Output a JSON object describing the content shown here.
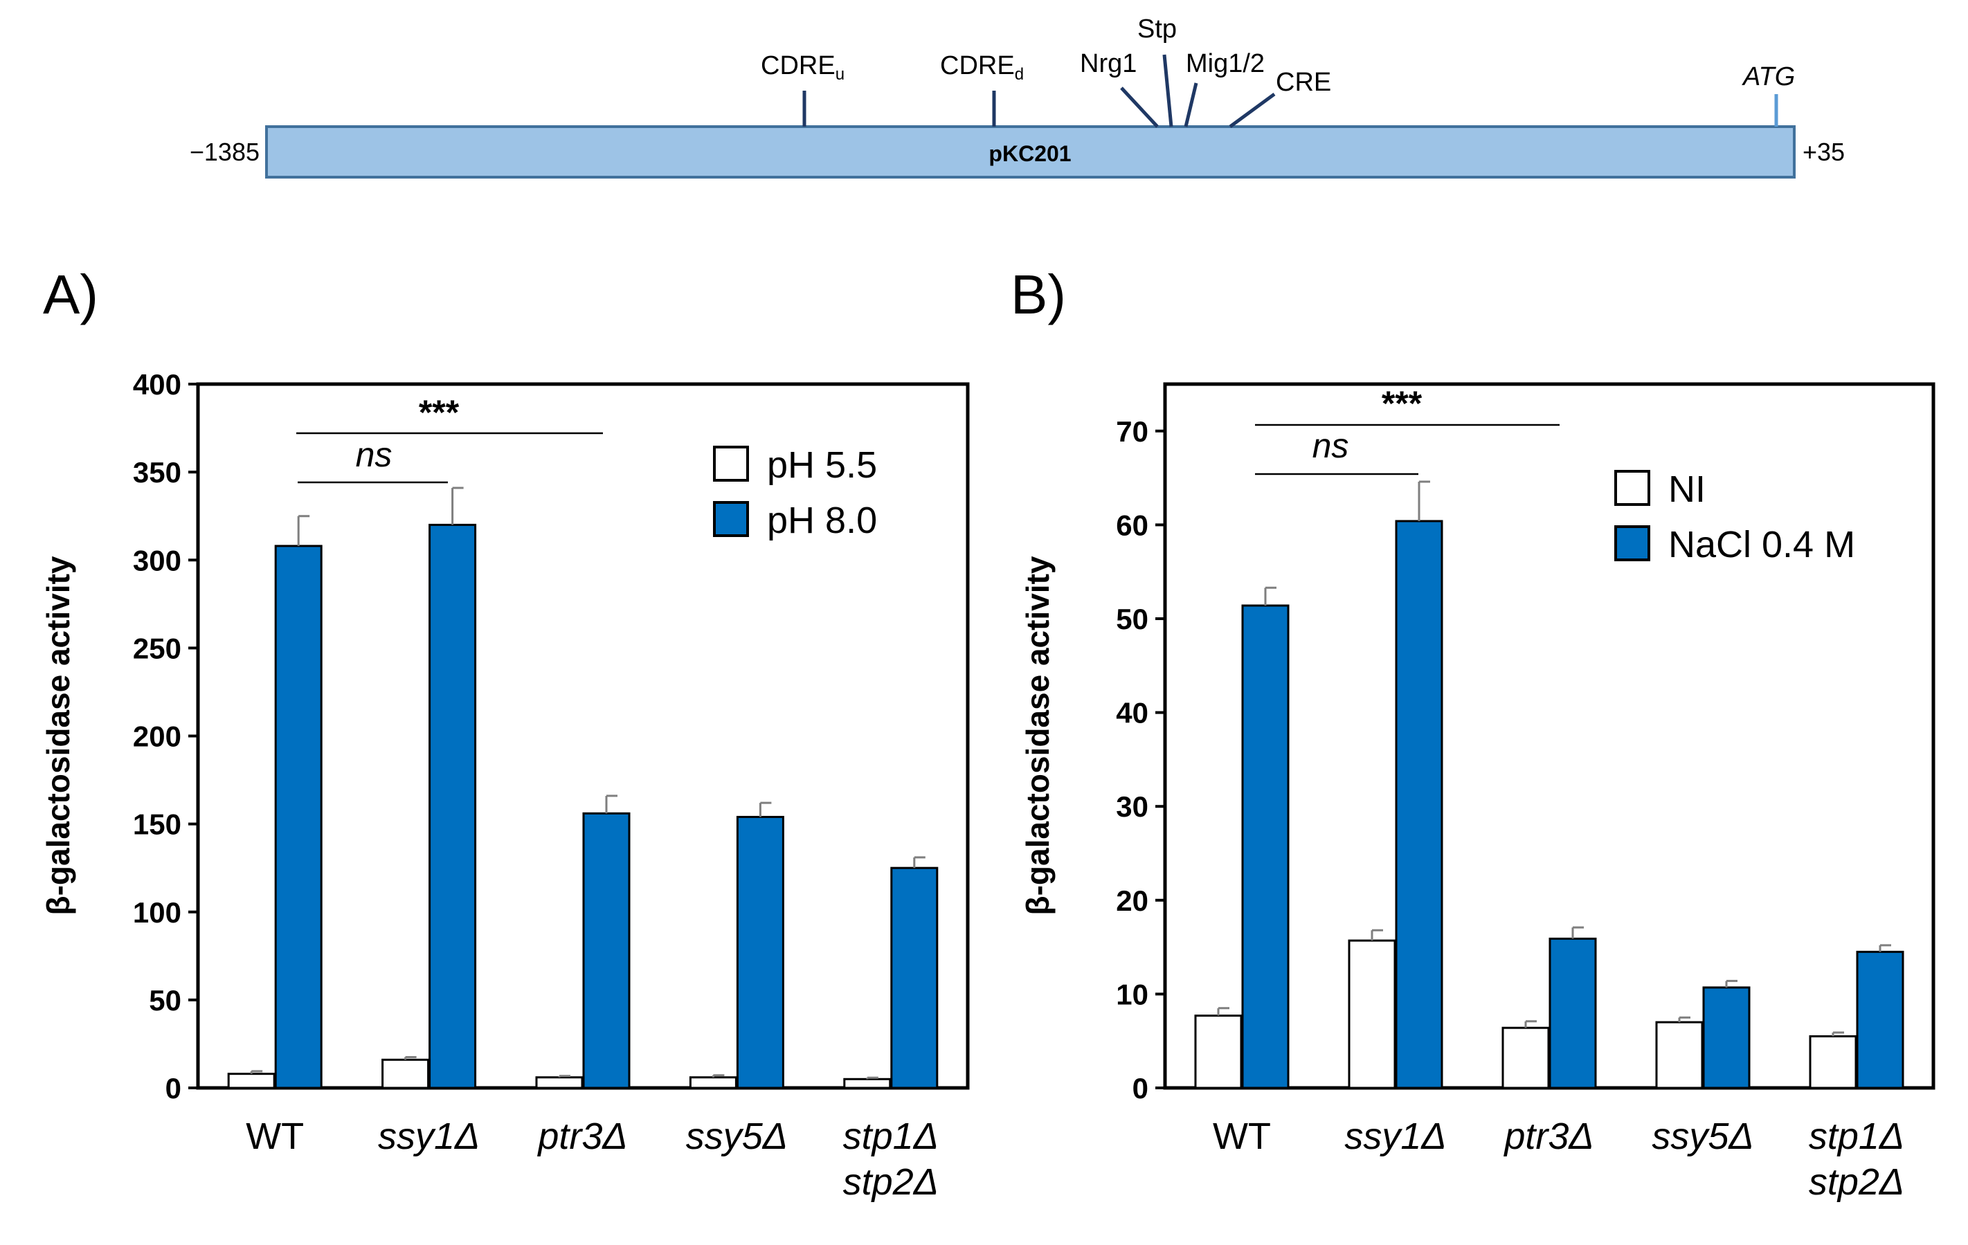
{
  "diagram": {
    "construct_label": "pKC201",
    "left_coord": "−1385",
    "right_coord": "+35",
    "bar_color": "#9dc3e6",
    "bar_stroke": "#41719c",
    "site_color": "#1f3864",
    "atg_color": "#5b9bd5",
    "sites": [
      {
        "main": "CDRE",
        "sub": "u"
      },
      {
        "main": "CDRE",
        "sub": "d"
      },
      {
        "main": "Nrg1",
        "sub": ""
      },
      {
        "main": "Stp",
        "sub": ""
      },
      {
        "main": "Mig1/2",
        "sub": ""
      },
      {
        "main": "CRE",
        "sub": ""
      }
    ],
    "start_codon": "ATG"
  },
  "panel_labels": [
    "A)",
    "B)"
  ],
  "chart_data": [
    {
      "type": "bar",
      "panel": "A)",
      "ylabel": "β-galactosidase activity",
      "ylim": [
        0,
        400
      ],
      "yticks": [
        0,
        50,
        100,
        150,
        200,
        250,
        300,
        350,
        400
      ],
      "categories": [
        {
          "line1": "WT",
          "line2": "",
          "italic": false
        },
        {
          "line1": "ssy1Δ",
          "line2": "",
          "italic": true
        },
        {
          "line1": "ptr3Δ",
          "line2": "",
          "italic": true
        },
        {
          "line1": "ssy5Δ",
          "line2": "",
          "italic": true
        },
        {
          "line1": "stp1Δ",
          "line2": "stp2Δ",
          "italic": true
        }
      ],
      "series": [
        {
          "name": "pH 5.5",
          "color": "#ffffff",
          "values": [
            8,
            16,
            6,
            6,
            5
          ],
          "errors": [
            1.5,
            1.5,
            0.8,
            1.2,
            0.8
          ]
        },
        {
          "name": "pH 8.0",
          "color": "#0070c0",
          "values": [
            308,
            320,
            156,
            154,
            125
          ],
          "errors": [
            17,
            21,
            10,
            8,
            6
          ]
        }
      ],
      "legend_position": "top-right",
      "significance": [
        {
          "label": "***",
          "from": 0,
          "to": 2
        },
        {
          "label": "ns",
          "from": 0,
          "to": 1
        }
      ]
    },
    {
      "type": "bar",
      "panel": "B)",
      "ylabel": "β-galactosidase activity",
      "ylim": [
        0,
        75
      ],
      "yticks": [
        0,
        10,
        20,
        30,
        40,
        50,
        60,
        70
      ],
      "categories": [
        {
          "line1": "WT",
          "line2": "",
          "italic": false
        },
        {
          "line1": "ssy1Δ",
          "line2": "",
          "italic": true
        },
        {
          "line1": "ptr3Δ",
          "line2": "",
          "italic": true
        },
        {
          "line1": "ssy5Δ",
          "line2": "",
          "italic": true
        },
        {
          "line1": "stp1Δ",
          "line2": "stp2Δ",
          "italic": true
        }
      ],
      "series": [
        {
          "name": "NI",
          "color": "#ffffff",
          "values": [
            7.7,
            15.7,
            6.4,
            7.0,
            5.5
          ],
          "errors": [
            0.8,
            1.1,
            0.7,
            0.5,
            0.4
          ]
        },
        {
          "name": "NaCl 0.4 M",
          "color": "#0070c0",
          "values": [
            51.4,
            60.4,
            15.9,
            10.7,
            14.5
          ],
          "errors": [
            1.9,
            4.2,
            1.2,
            0.7,
            0.7
          ]
        }
      ],
      "legend_position": "top-right",
      "significance": [
        {
          "label": "***",
          "from": 0,
          "to": 2
        },
        {
          "label": "ns",
          "from": 0,
          "to": 1
        }
      ]
    }
  ]
}
